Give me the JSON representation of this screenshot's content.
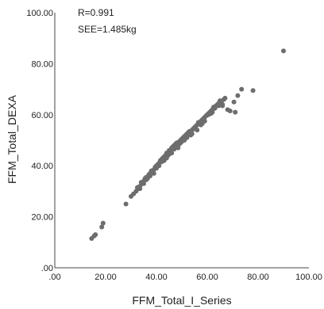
{
  "chart_data": {
    "type": "scatter",
    "title": "",
    "xlabel": "FFM_Total_I_Series",
    "ylabel": "FFM_Total_DEXA",
    "xlim": [
      0,
      100
    ],
    "ylim": [
      0,
      100
    ],
    "xticks": [
      ".00",
      "20.00",
      "40.00",
      "60.00",
      "80.00",
      "100.00"
    ],
    "yticks": [
      ".00",
      "20.00",
      "40.00",
      "60.00",
      "80.00",
      "100.00"
    ],
    "annotations": [
      "R=0.991",
      "SEE=1.485kg"
    ],
    "grid": false,
    "point_color": "#6d6d6d",
    "series": [
      {
        "x": [
          14.5,
          15.5,
          16.0,
          18.5,
          19.0,
          28.0,
          30.0,
          31.0,
          32.0,
          32.5,
          33.0,
          33.5,
          34.0,
          34.5,
          35.0,
          35.5,
          36.0,
          36.5,
          37.0,
          37.5,
          38.0,
          38.5,
          39.0,
          39.5,
          40.0,
          40.5,
          41.0,
          41.5,
          42.0,
          42.5,
          43.0,
          43.5,
          44.0,
          44.5,
          45.0,
          45.5,
          46.0,
          46.5,
          47.0,
          47.5,
          48.0,
          48.5,
          49.0,
          49.5,
          50.0,
          50.5,
          51.0,
          51.5,
          52.0,
          52.5,
          53.0,
          53.5,
          54.0,
          54.5,
          55.0,
          55.5,
          56.0,
          56.5,
          57.0,
          57.5,
          58.0,
          58.5,
          59.0,
          59.5,
          60.0,
          60.5,
          61.0,
          61.5,
          62.0,
          62.5,
          63.0,
          63.5,
          64.0,
          64.5,
          65.0,
          65.5,
          66.0,
          66.5,
          67.0,
          68.0,
          69.0,
          70.5,
          71.0,
          72.0,
          73.5,
          78.0,
          90.0,
          35.0,
          37.5,
          41.0,
          44.5,
          47.0,
          49.5,
          52.0,
          55.0,
          58.0,
          60.5,
          63.0,
          66.0,
          38.0,
          42.0,
          46.0,
          50.0,
          54.0,
          57.5,
          61.5,
          64.5,
          33.5,
          36.0,
          39.0,
          43.0,
          48.5,
          53.5,
          59.0,
          62.0,
          45.0,
          51.0,
          56.0,
          40.0,
          34.5,
          44.0,
          49.0,
          55.5
        ],
        "y": [
          11.5,
          12.5,
          13.0,
          16.0,
          17.5,
          25.0,
          28.0,
          29.0,
          30.0,
          31.5,
          31.0,
          32.0,
          33.5,
          33.0,
          34.0,
          35.0,
          35.5,
          35.0,
          36.5,
          37.0,
          38.0,
          37.5,
          38.5,
          39.5,
          40.0,
          40.5,
          41.0,
          42.0,
          42.5,
          43.0,
          43.5,
          44.0,
          45.0,
          45.0,
          46.0,
          45.5,
          47.0,
          47.5,
          48.0,
          48.5,
          49.0,
          48.0,
          49.5,
          50.0,
          50.5,
          51.0,
          51.5,
          52.0,
          52.5,
          53.0,
          53.5,
          53.0,
          54.0,
          54.5,
          55.0,
          55.5,
          56.0,
          57.0,
          57.0,
          57.5,
          58.0,
          58.5,
          59.0,
          59.5,
          60.0,
          60.5,
          61.0,
          61.5,
          62.0,
          63.0,
          63.0,
          63.5,
          64.0,
          64.5,
          65.5,
          65.0,
          64.0,
          66.0,
          66.5,
          62.0,
          61.5,
          65.0,
          61.0,
          67.5,
          70.0,
          69.5,
          85.0,
          33.0,
          36.0,
          40.0,
          44.0,
          46.5,
          49.0,
          51.0,
          54.5,
          56.5,
          60.0,
          62.5,
          63.5,
          37.0,
          41.5,
          45.0,
          49.5,
          52.5,
          56.0,
          60.5,
          63.5,
          31.0,
          34.5,
          37.0,
          42.0,
          47.0,
          52.0,
          57.5,
          61.0,
          44.5,
          50.0,
          54.0,
          39.0,
          33.0,
          43.0,
          48.5,
          54.5
        ]
      }
    ]
  }
}
